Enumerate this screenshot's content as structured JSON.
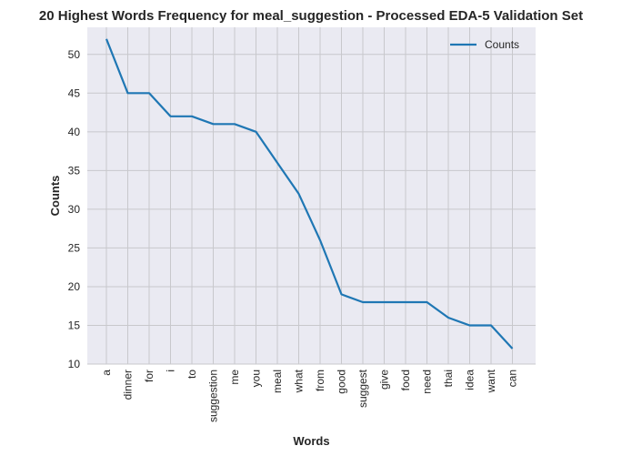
{
  "chart_data": {
    "type": "line",
    "title": "20 Highest Words Frequency for meal_suggestion - Processed EDA-5 Validation Set",
    "xlabel": "Words",
    "ylabel": "Counts",
    "categories": [
      "a",
      "dinner",
      "for",
      "i",
      "to",
      "suggestion",
      "me",
      "you",
      "meal",
      "what",
      "from",
      "good",
      "suggest",
      "give",
      "food",
      "need",
      "thai",
      "idea",
      "want",
      "can"
    ],
    "series": [
      {
        "name": "Counts",
        "values": [
          52,
          45,
          45,
          42,
          42,
          41,
          41,
          40,
          36,
          32,
          26,
          19,
          18,
          18,
          18,
          18,
          16,
          15,
          15,
          12
        ]
      }
    ],
    "ylim": [
      10,
      53.5
    ],
    "yticks": [
      10,
      15,
      20,
      25,
      30,
      35,
      40,
      45,
      50
    ],
    "grid": true,
    "legend": "top-right",
    "colors": {
      "line": "#1f77b4",
      "plot_bg": "#eaeaf2",
      "grid": "#c8c8cc"
    }
  }
}
